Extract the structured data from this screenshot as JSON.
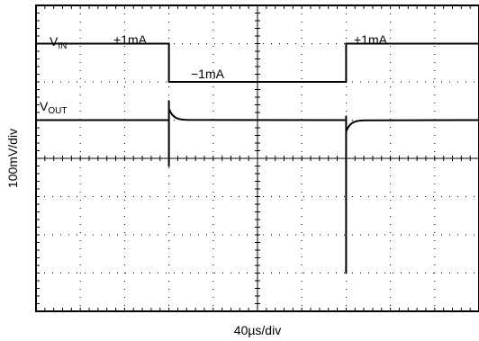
{
  "chart_data": {
    "type": "line",
    "xlabel": "40µs/div",
    "ylabel": "100mV/div",
    "grid": true,
    "divisions": {
      "x": 10,
      "y": 8
    },
    "x_unit": "µs",
    "x_per_div": 40,
    "x_range": [
      0,
      400
    ],
    "series": [
      {
        "name": "VIN",
        "trace": "square",
        "high_div": 7.0,
        "low_div": 6.0,
        "segments": [
          {
            "label": "+1mA",
            "x_start": 0,
            "x_end": 120,
            "level": "high"
          },
          {
            "label": "−1mA",
            "x_start": 120,
            "x_end": 280,
            "level": "low"
          },
          {
            "label": "+1mA",
            "x_start": 280,
            "x_end": 400,
            "level": "high"
          }
        ]
      },
      {
        "name": "VOUT",
        "baseline_div": 5.0,
        "events": [
          {
            "x": 120,
            "spike_up_div": 0.5,
            "spike_down_div": -1.2,
            "overshoot_div": 0.3,
            "settle_us": 16
          },
          {
            "x": 280,
            "spike_up_div": 0.1,
            "spike_down_div": -4.0,
            "overshoot_div": -0.3,
            "settle_us": 16
          }
        ]
      }
    ]
  },
  "labels": {
    "vin_main": "V",
    "vin_sub": "IN",
    "vout_main": "V",
    "vout_sub": "OUT",
    "seg1": "+1mA",
    "seg2": "−1mA",
    "seg3": "+1mA"
  },
  "colors": {
    "trace": "#000000",
    "grid": "#000000",
    "background": "#ffffff"
  }
}
